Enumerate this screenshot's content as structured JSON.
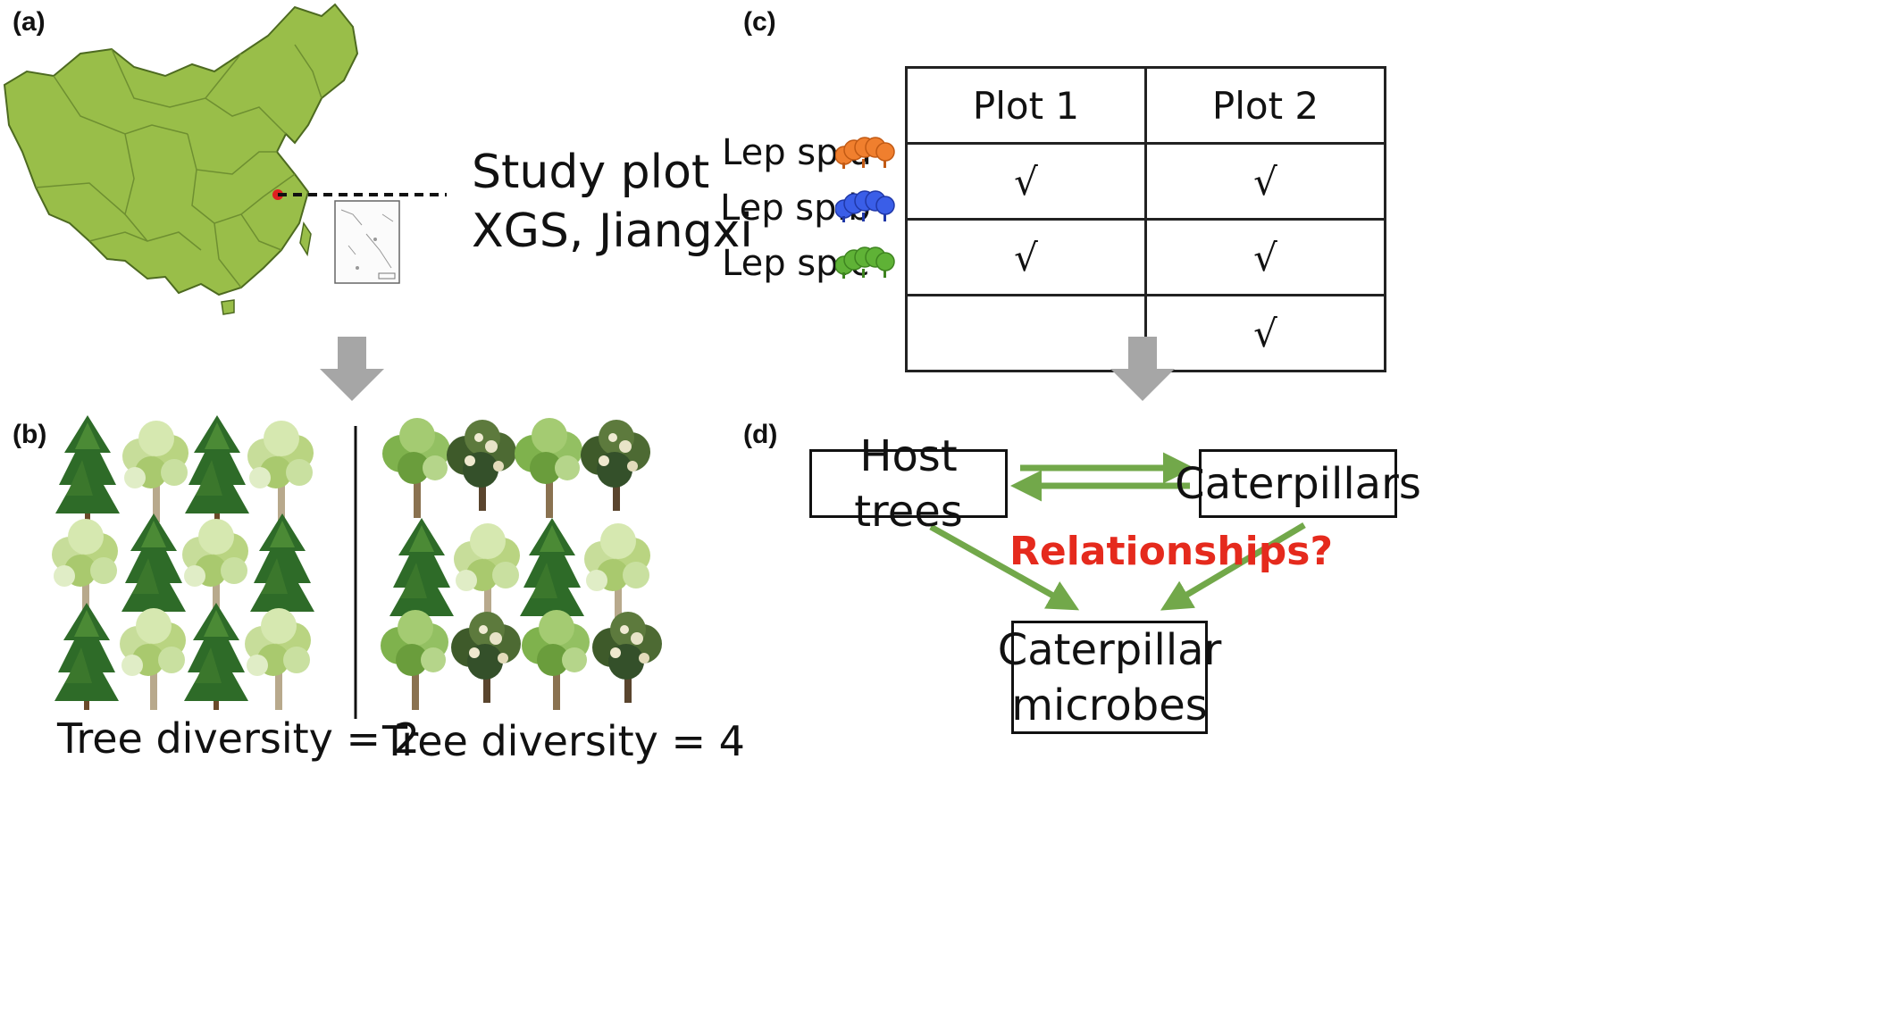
{
  "panels": {
    "a": {
      "label": "(a)",
      "study_plot_line1": "Study plot",
      "study_plot_line2": "XGS, Jiangxi",
      "map_fill": "#99be49",
      "marker_color": "#e02020"
    },
    "b": {
      "label": "(b)",
      "left_caption": "Tree diversity = 2",
      "right_caption": "Tree diversity = 4",
      "left_grid": [
        [
          "conifer",
          "broadleaf-light",
          "conifer",
          "broadleaf-light"
        ],
        [
          "broadleaf-light",
          "conifer",
          "broadleaf-light",
          "conifer"
        ],
        [
          "conifer",
          "broadleaf-light",
          "conifer",
          "broadleaf-light"
        ]
      ],
      "right_grid": [
        [
          "broadleaf-green",
          "broadleaf-dark",
          "broadleaf-green",
          "broadleaf-dark"
        ],
        [
          "conifer",
          "broadleaf-light",
          "conifer",
          "broadleaf-light"
        ],
        [
          "broadleaf-green",
          "broadleaf-dark",
          "broadleaf-green",
          "broadleaf-dark"
        ]
      ]
    },
    "c": {
      "label": "(c)",
      "columns": [
        "Plot 1",
        "Plot 2"
      ],
      "rows": [
        {
          "species": "Lep sp.a",
          "color": "#f07f2e",
          "plot1": "√",
          "plot2": "√"
        },
        {
          "species": "Lep sp.b",
          "color": "#3a5ee8",
          "plot1": "√",
          "plot2": "√"
        },
        {
          "species": "Lep sp.c",
          "color": "#5fb236",
          "plot1": "",
          "plot2": "√"
        }
      ]
    },
    "d": {
      "label": "(d)",
      "host_trees": "Host trees",
      "caterpillars": "Caterpillars",
      "question": "Relationships?",
      "microbes_line1": "Caterpillar",
      "microbes_line2": "microbes",
      "arrow_color": "#72a84a"
    }
  },
  "flow_arrow_color": "#a6a6a6"
}
